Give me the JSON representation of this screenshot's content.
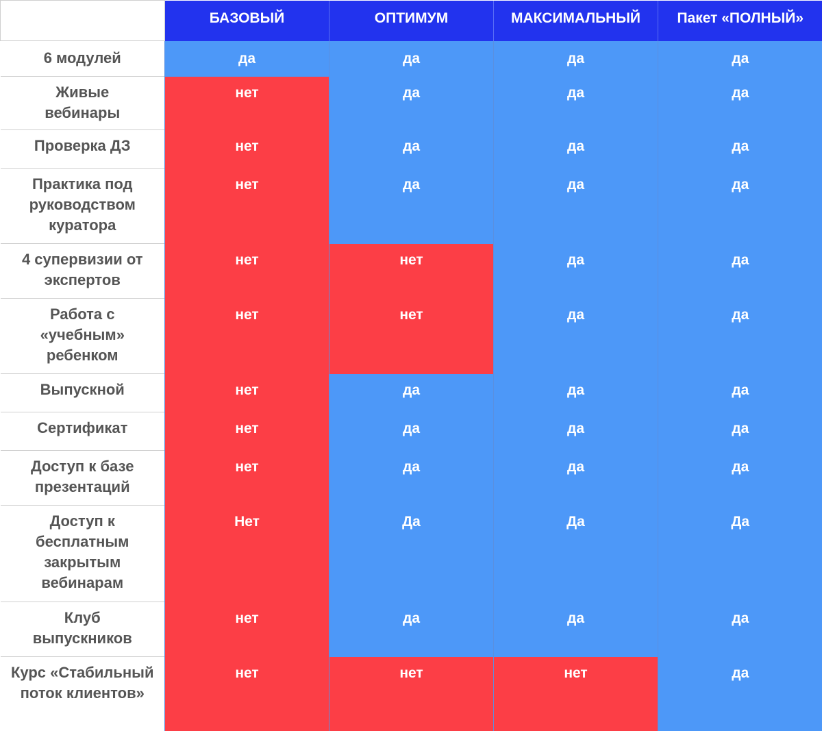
{
  "colors": {
    "header": "#2233ee",
    "yes": "#4d98f8",
    "no": "#fc3e46",
    "label_text": "#555555"
  },
  "plans": [
    "БАЗОВЫЙ",
    "ОПТИМУМ",
    "МАКСИМАЛЬНЫЙ",
    "Пакет «ПОЛНЫЙ»"
  ],
  "rows": [
    {
      "label": "6 модулей",
      "values": [
        "да",
        "да",
        "да",
        "да"
      ],
      "status": [
        "yes",
        "yes",
        "yes",
        "yes"
      ]
    },
    {
      "label": "Живые вебинары",
      "values": [
        "нет",
        "да",
        "да",
        "да"
      ],
      "status": [
        "no",
        "yes",
        "yes",
        "yes"
      ]
    },
    {
      "label": "Проверка ДЗ",
      "values": [
        "нет",
        "да",
        "да",
        "да"
      ],
      "status": [
        "no",
        "yes",
        "yes",
        "yes"
      ]
    },
    {
      "label": "Практика под руководством куратора",
      "values": [
        "нет",
        "да",
        "да",
        "да"
      ],
      "status": [
        "no",
        "yes",
        "yes",
        "yes"
      ]
    },
    {
      "label": "4 супервизии от экспертов",
      "values": [
        "нет",
        "нет",
        "да",
        "да"
      ],
      "status": [
        "no",
        "no",
        "yes",
        "yes"
      ]
    },
    {
      "label": "Работа с «учебным» ребенком",
      "values": [
        "нет",
        "нет",
        "да",
        "да"
      ],
      "status": [
        "no",
        "no",
        "yes",
        "yes"
      ]
    },
    {
      "label": "Выпускной",
      "values": [
        "нет",
        "да",
        "да",
        "да"
      ],
      "status": [
        "no",
        "yes",
        "yes",
        "yes"
      ]
    },
    {
      "label": "Сертификат",
      "values": [
        "нет",
        "да",
        "да",
        "да"
      ],
      "status": [
        "no",
        "yes",
        "yes",
        "yes"
      ]
    },
    {
      "label": "Доступ к базе презентаций",
      "values": [
        "нет",
        "да",
        "да",
        "да"
      ],
      "status": [
        "no",
        "yes",
        "yes",
        "yes"
      ]
    },
    {
      "label": "Доступ к бесплатным закрытым вебинарам",
      "values": [
        "Нет",
        "Да",
        "Да",
        "Да"
      ],
      "status": [
        "no",
        "yes",
        "yes",
        "yes"
      ]
    },
    {
      "label": "Клуб выпускников",
      "values": [
        "нет",
        "да",
        "да",
        "да"
      ],
      "status": [
        "no",
        "yes",
        "yes",
        "yes"
      ]
    },
    {
      "label": "Курс «Стабильный поток клиентов»",
      "values": [
        "нет",
        "нет",
        "нет",
        "да"
      ],
      "status": [
        "no",
        "no",
        "no",
        "yes"
      ]
    }
  ]
}
